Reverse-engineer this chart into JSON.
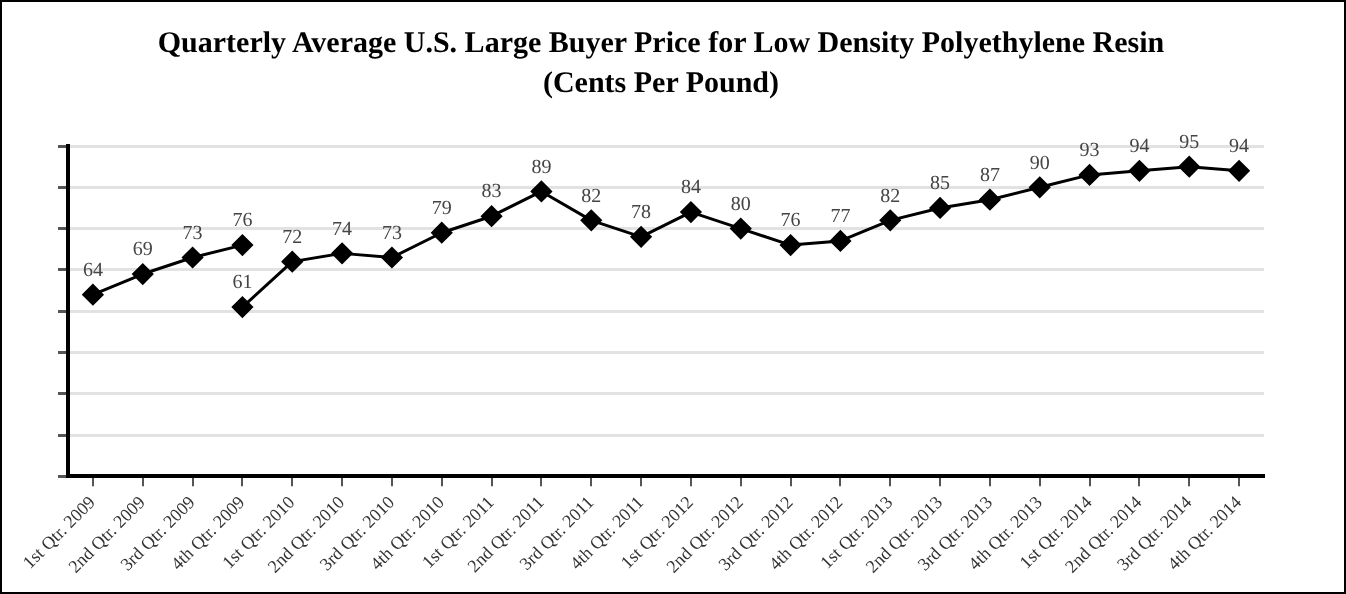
{
  "chart_data": {
    "type": "line",
    "title": "Quarterly Average U.S. Large Buyer Price for Low Density Polyethylene Resin",
    "subtitle": "(Cents Per Pound)",
    "categories": [
      "1st Qtr. 2009",
      "2nd Qtr. 2009",
      "3rd Qtr. 2009",
      "4th Qtr. 2009",
      "1st Qtr. 2010",
      "2nd Qtr. 2010",
      "3rd Qtr. 2010",
      "4th Qtr. 2010",
      "1st Qtr. 2011",
      "2nd Qtr. 2011",
      "3rd Qtr. 2011",
      "4th Qtr. 2011",
      "1st Qtr. 2012",
      "2nd Qtr. 2012",
      "3rd Qtr. 2012",
      "4th Qtr. 2012",
      "1st Qtr. 2013",
      "2nd Qtr. 2013",
      "3rd Qtr. 2013",
      "4th Qtr. 2013",
      "1st Qtr. 2014",
      "2nd Qtr. 2014",
      "3rd Qtr. 2014",
      "4th Qtr. 2014"
    ],
    "series": [
      {
        "color": "#000000",
        "values": [
          64,
          69,
          73,
          76,
          null,
          null,
          null,
          null,
          null,
          null,
          null,
          null,
          null,
          null,
          null,
          null,
          null,
          null,
          null,
          null,
          null,
          null,
          null,
          null
        ]
      },
      {
        "color": "#000000",
        "values": [
          null,
          null,
          null,
          61,
          72,
          74,
          73,
          79,
          83,
          89,
          82,
          78,
          84,
          80,
          76,
          77,
          82,
          85,
          87,
          90,
          93,
          94,
          95,
          94
        ]
      }
    ],
    "ylim": [
      20,
      100
    ],
    "yticks": [
      {
        "value": 20,
        "label": null
      },
      {
        "value": 30,
        "label": null
      },
      {
        "value": 40,
        "label": null
      },
      {
        "value": 50,
        "label": null
      },
      {
        "value": 60,
        "label": null
      },
      {
        "value": 70,
        "label": null
      },
      {
        "value": 80,
        "label": null
      },
      {
        "value": 90,
        "label": null
      },
      {
        "value": 100,
        "label": null
      }
    ],
    "tick_labels": "x",
    "grid": "y",
    "legend": false,
    "marker": "diamond",
    "line_style": "solid",
    "data_labels": true
  }
}
